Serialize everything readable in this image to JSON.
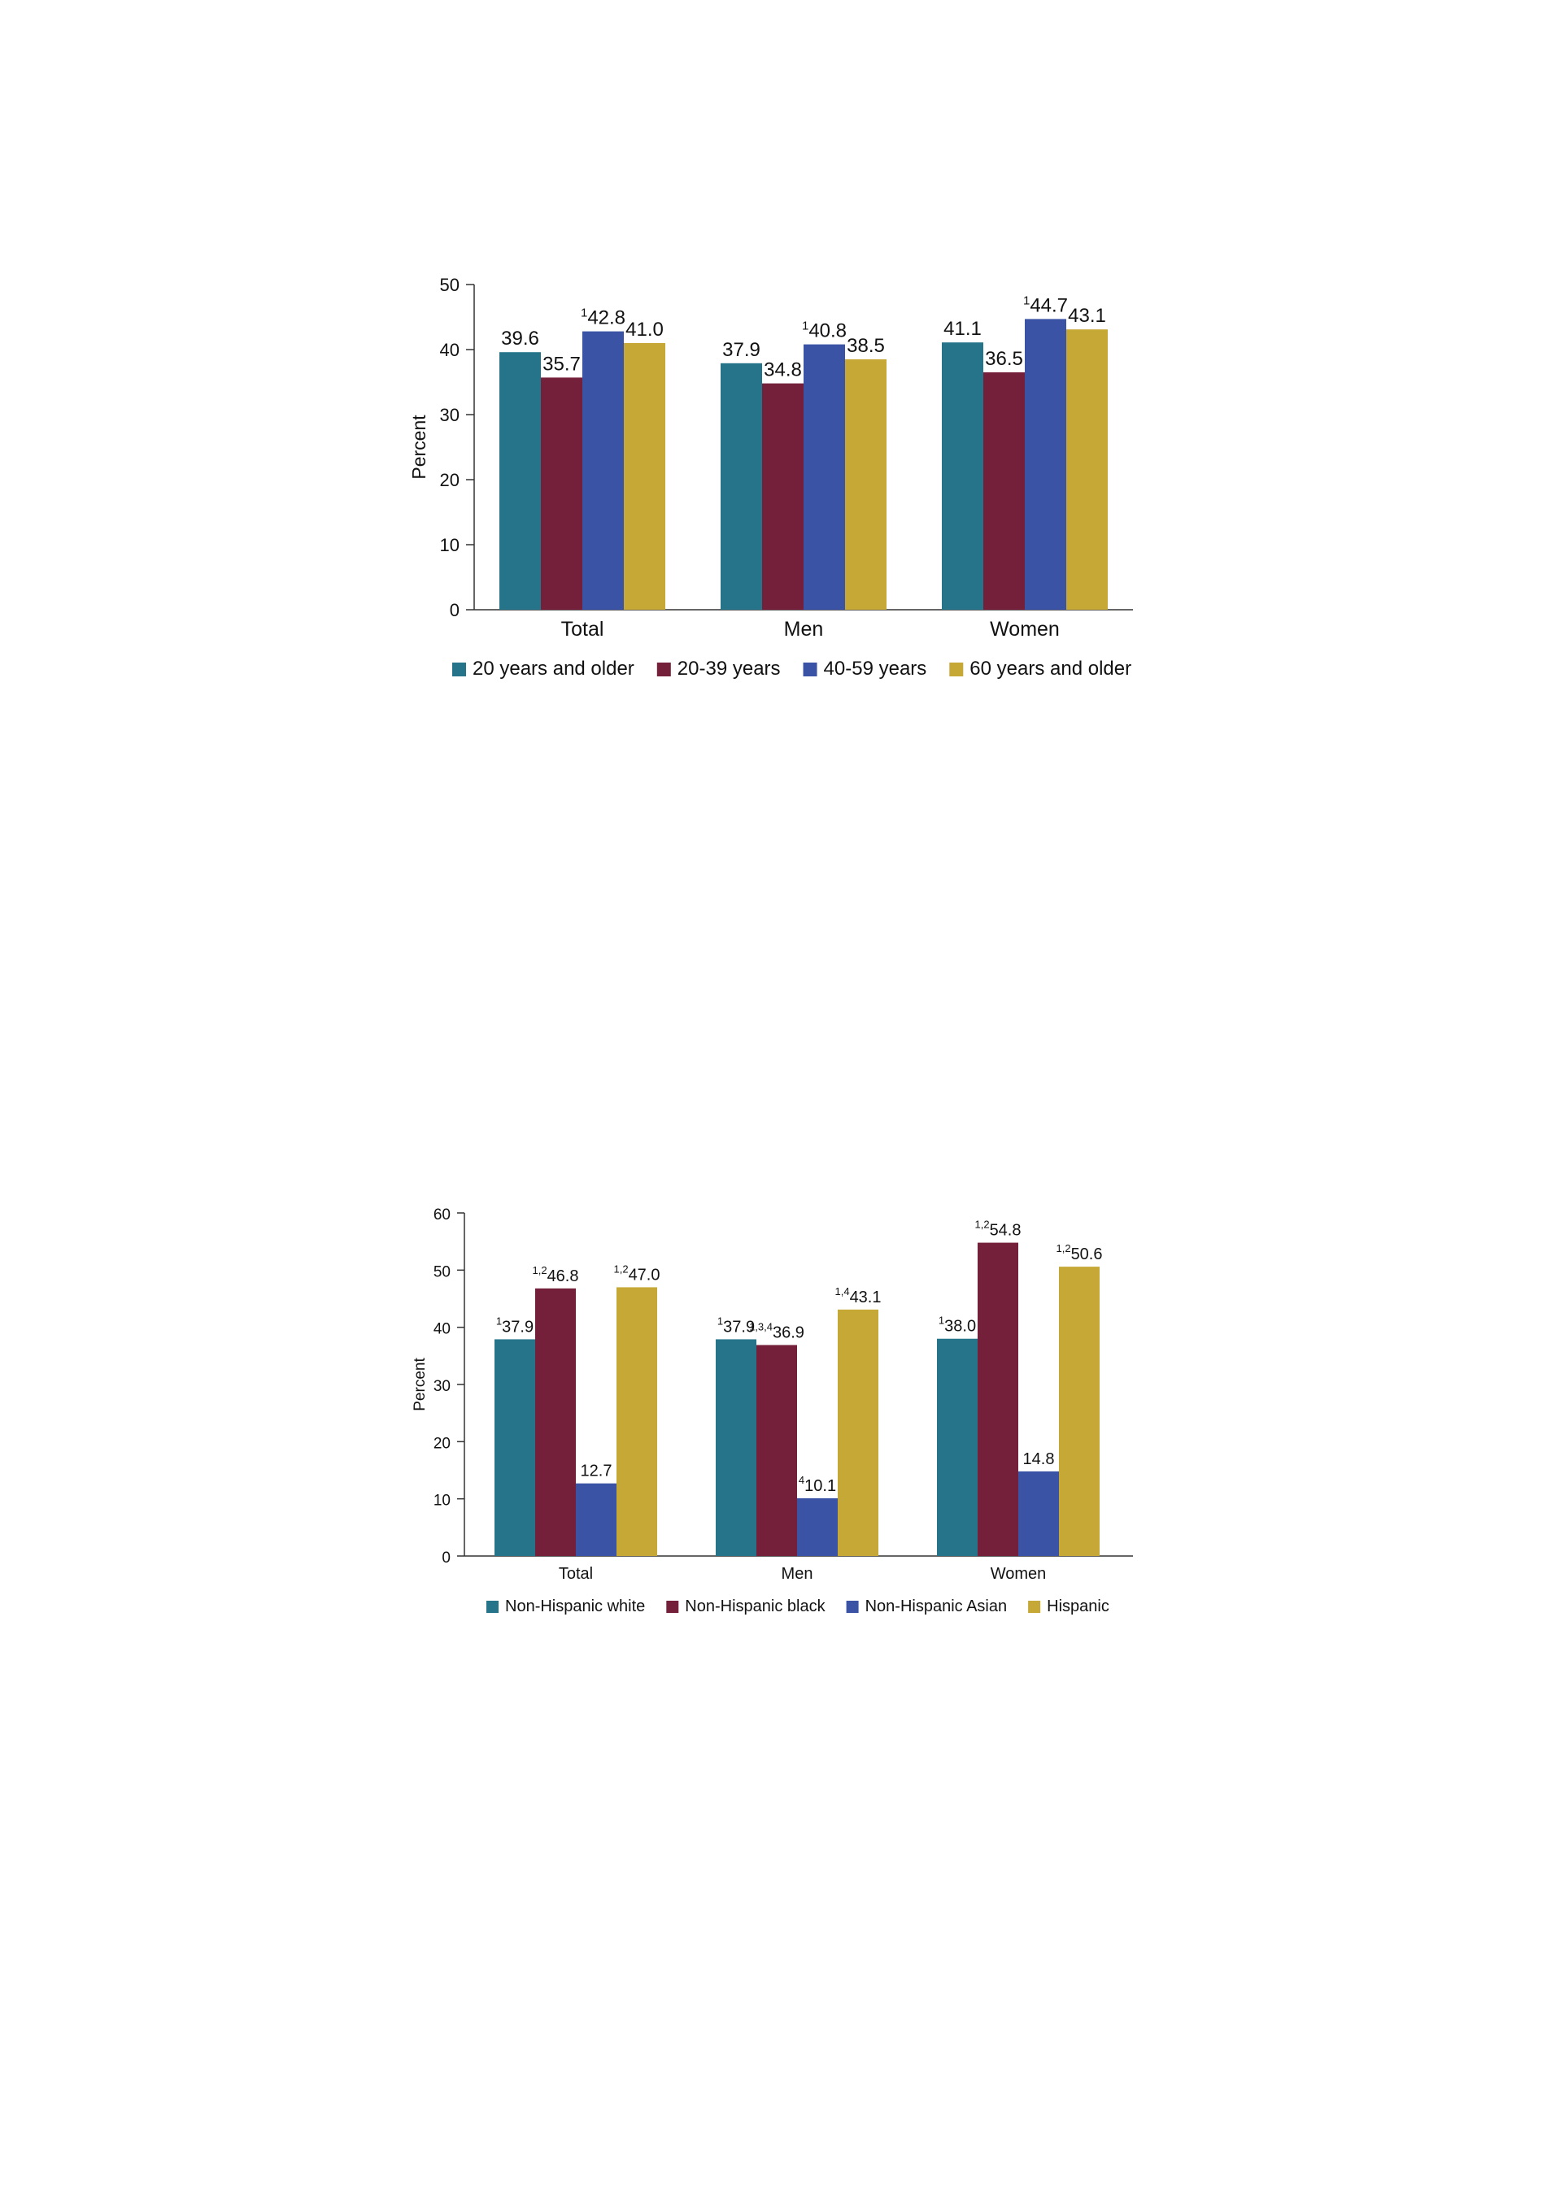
{
  "chart_data": [
    {
      "type": "bar",
      "categories": [
        "Total",
        "Men",
        "Women"
      ],
      "ylabel": "Percent",
      "xlabel": "",
      "ylim": [
        0,
        50
      ],
      "yticks": [
        0,
        10,
        20,
        30,
        40,
        50
      ],
      "grid": false,
      "legend_position": "bottom",
      "series": [
        {
          "name": "20 years and older",
          "color": "#267489",
          "values": [
            39.6,
            37.9,
            41.1
          ],
          "labels": [
            "39.6",
            "37.9",
            "41.1"
          ],
          "footnotes": [
            "",
            "",
            ""
          ]
        },
        {
          "name": "20-39 years",
          "color": "#74203A",
          "values": [
            35.7,
            34.8,
            36.5
          ],
          "labels": [
            "35.7",
            "34.8",
            "36.5"
          ],
          "footnotes": [
            "",
            "",
            ""
          ]
        },
        {
          "name": "40-59 years",
          "color": "#3B53A4",
          "values": [
            42.8,
            40.8,
            44.7
          ],
          "labels": [
            "42.8",
            "40.8",
            "44.7"
          ],
          "footnotes": [
            "1",
            "1",
            "1"
          ]
        },
        {
          "name": "60 years and older",
          "color": "#C5A835",
          "values": [
            41.0,
            38.5,
            43.1
          ],
          "labels": [
            "41.0",
            "38.5",
            "43.1"
          ],
          "footnotes": [
            "",
            "",
            ""
          ]
        }
      ]
    },
    {
      "type": "bar",
      "categories": [
        "Total",
        "Men",
        "Women"
      ],
      "ylabel": "Percent",
      "xlabel": "",
      "ylim": [
        0,
        60
      ],
      "yticks": [
        0,
        10,
        20,
        30,
        40,
        50,
        60
      ],
      "grid": false,
      "legend_position": "bottom",
      "series": [
        {
          "name": "Non-Hispanic white",
          "color": "#267489",
          "values": [
            37.9,
            37.9,
            38.0
          ],
          "labels": [
            "37.9",
            "37.9",
            "38.0"
          ],
          "footnotes": [
            "1",
            "1",
            "1"
          ]
        },
        {
          "name": "Non-Hispanic black",
          "color": "#74203A",
          "values": [
            46.8,
            36.9,
            54.8
          ],
          "labels": [
            "46.8",
            "36.9",
            "54.8"
          ],
          "footnotes": [
            "1,2",
            "1,3,4",
            "1,2"
          ]
        },
        {
          "name": "Non-Hispanic Asian",
          "color": "#3B53A4",
          "values": [
            12.7,
            10.1,
            14.8
          ],
          "labels": [
            "12.7",
            "10.1",
            "14.8"
          ],
          "footnotes": [
            "",
            "4",
            ""
          ]
        },
        {
          "name": "Hispanic",
          "color": "#C5A835",
          "values": [
            47.0,
            43.1,
            50.6
          ],
          "labels": [
            "47.0",
            "43.1",
            "50.6"
          ],
          "footnotes": [
            "1,2",
            "1,4",
            "1,2"
          ]
        }
      ]
    }
  ]
}
